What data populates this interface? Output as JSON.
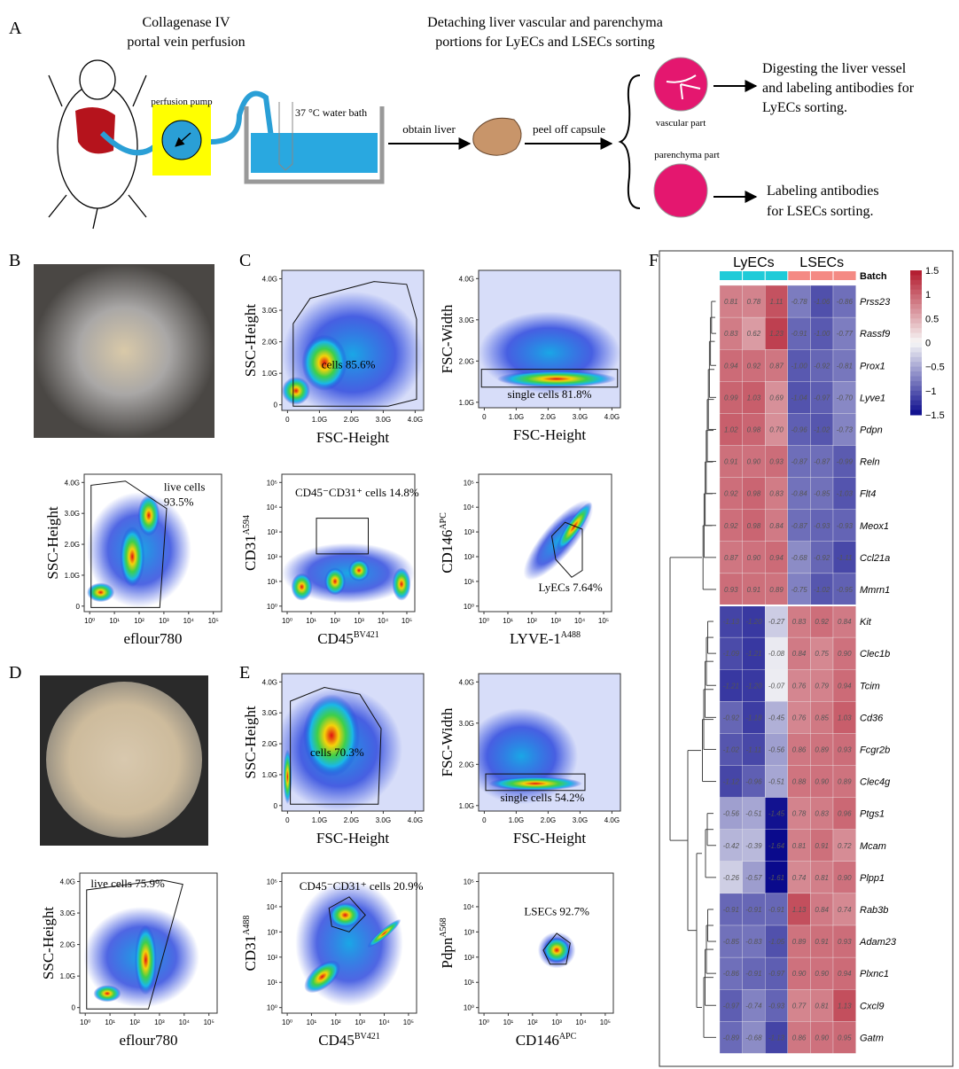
{
  "panel_labels": [
    "A",
    "B",
    "C",
    "D",
    "E",
    "F"
  ],
  "panel_a": {
    "step1_line1": "Collagenase IV",
    "step1_line2": "portal vein perfusion",
    "pump": "perfusion pump",
    "bath": "37 °C water bath",
    "arrow1": "obtain liver",
    "arrow2": "peel off  capsule",
    "detach_line1": "Detaching liver vascular and parenchyma",
    "detach_line2": "portions for LyECs and LSECs sorting",
    "vascular": "vascular  part",
    "parenchyma": "parenchyma part",
    "out1_line1": "Digesting the liver vessel",
    "out1_line2": "and labeling antibodies for",
    "out1_line3": "LyECs sorting.",
    "out2_line1": "Labeling antibodies",
    "out2_line2": "for LSECs sorting."
  },
  "flow_plots": [
    {
      "y_label": "SSC-Height",
      "x_label": "eflour780",
      "x_ticks": [
        "10⁰",
        "10¹",
        "10²",
        "10³",
        "10⁴",
        "10⁵"
      ],
      "y_ticks": [
        "0",
        "1.0G",
        "2.0G",
        "3.0G",
        "4.0G"
      ],
      "gate_label": [
        "live cells",
        "93.5%"
      ]
    },
    {
      "y_label": "SSC-Height",
      "x_label": "FSC-Height",
      "x_ticks": [
        "0",
        "1.0G",
        "2.0G",
        "3.0G",
        "4.0G"
      ],
      "y_ticks": [
        "0",
        "1.0G",
        "2.0G",
        "3.0G",
        "4.0G"
      ],
      "gate_label": [
        "cells 85.6%"
      ]
    },
    {
      "y_label": "FSC-Width",
      "x_label": "FSC-Height",
      "x_ticks": [
        "0",
        "1.0G",
        "2.0G",
        "3.0G",
        "4.0G"
      ],
      "y_ticks": [
        "1.0G",
        "2.0G",
        "3.0G",
        "4.0G"
      ],
      "gate_label": [
        "single cells 81.8%"
      ]
    },
    {
      "y_label": "CD31",
      "y_label_sup": "A594",
      "x_label": "CD45",
      "x_label_sup": "BV421",
      "x_ticks": [
        "10⁰",
        "10¹",
        "10²",
        "10³",
        "10⁴",
        "10⁵"
      ],
      "y_ticks": [
        "10⁰",
        "10¹",
        "10²",
        "10³",
        "10⁴",
        "10⁵"
      ],
      "gate_label": [
        "CD45⁻CD31⁺ cells 14.8%"
      ]
    },
    {
      "y_label": "CD146",
      "y_label_sup": "APC",
      "x_label": "LYVE-1",
      "x_label_sup": "A488",
      "x_ticks": [
        "10⁰",
        "10¹",
        "10²",
        "10³",
        "10⁴",
        "10⁵"
      ],
      "y_ticks": [
        "10⁰",
        "10¹",
        "10²",
        "10³",
        "10⁴",
        "10⁵"
      ],
      "gate_label": [
        "LyECs 7.64%"
      ]
    },
    {
      "y_label": "SSC-Height",
      "x_label": "eflour780",
      "x_ticks": [
        "10⁰",
        "10¹",
        "10²",
        "10³",
        "10⁴",
        "10⁵"
      ],
      "y_ticks": [
        "0",
        "1.0G",
        "2.0G",
        "3.0G",
        "4.0G"
      ],
      "gate_label": [
        "live cells 75.9%"
      ]
    },
    {
      "y_label": "SSC-Height",
      "x_label": "FSC-Height",
      "x_ticks": [
        "0",
        "1.0G",
        "2.0G",
        "3.0G",
        "4.0G"
      ],
      "y_ticks": [
        "0",
        "1.0G",
        "2.0G",
        "3.0G",
        "4.0G"
      ],
      "gate_label": [
        "cells 70.3%"
      ]
    },
    {
      "y_label": "FSC-Width",
      "x_label": "FSC-Height",
      "x_ticks": [
        "0",
        "1.0G",
        "2.0G",
        "3.0G",
        "4.0G"
      ],
      "y_ticks": [
        "1.0G",
        "2.0G",
        "3.0G",
        "4.0G"
      ],
      "gate_label": [
        "single cells 54.2%"
      ]
    },
    {
      "y_label": "CD31",
      "y_label_sup": "A488",
      "x_label": "CD45",
      "x_label_sup": "BV421",
      "x_ticks": [
        "10⁰",
        "10¹",
        "10²",
        "10³",
        "10⁴",
        "10⁵"
      ],
      "y_ticks": [
        "10⁰",
        "10¹",
        "10²",
        "10³",
        "10⁴",
        "10⁵"
      ],
      "gate_label": [
        "CD45⁻CD31⁺ cells 20.9%"
      ]
    },
    {
      "y_label": "Pdpn",
      "y_label_sup": "A568",
      "x_label": "CD146",
      "x_label_sup": "APC",
      "x_ticks": [
        "10⁰",
        "10¹",
        "10²",
        "10³",
        "10⁴",
        "10⁵"
      ],
      "y_ticks": [
        "10⁰",
        "10¹",
        "10²",
        "10³",
        "10⁴",
        "10⁵"
      ],
      "gate_label": [
        "LSECs 92.7%"
      ]
    }
  ],
  "heatmap": {
    "groups": [
      "LyECs",
      "LSECs"
    ],
    "batch_label": "Batch",
    "genes": [
      "Prss23",
      "Rassf9",
      "Prox1",
      "Lyve1",
      "Pdpn",
      "Reln",
      "Flt4",
      "Meox1",
      "Ccl21a",
      "Mmrn1",
      "Kit",
      "Clec1b",
      "Tcim",
      "Cd36",
      "Fcgr2b",
      "Clec4g",
      "Ptgs1",
      "Mcam",
      "Plpp1",
      "Rab3b",
      "Adam23",
      "Plxnc1",
      "Cxcl9",
      "Gatm"
    ],
    "values": [
      [
        "0.81",
        "0.78",
        "1.11",
        "-0.78",
        "-1.06",
        "-0.86"
      ],
      [
        "0.83",
        "0.62",
        "1.23",
        "-0.91",
        "-1.00",
        "-0.77"
      ],
      [
        "0.94",
        "0.92",
        "0.87",
        "-1.00",
        "-0.92",
        "-0.81"
      ],
      [
        "0.99",
        "1.03",
        "0.69",
        "-1.04",
        "-0.97",
        "-0.70"
      ],
      [
        "1.02",
        "0.98",
        "0.70",
        "-0.96",
        "-1.02",
        "-0.73"
      ],
      [
        "0.91",
        "0.90",
        "0.93",
        "-0.87",
        "-0.87",
        "-0.99"
      ],
      [
        "0.92",
        "0.98",
        "0.83",
        "-0.84",
        "-0.85",
        "-1.03"
      ],
      [
        "0.92",
        "0.98",
        "0.84",
        "-0.87",
        "-0.93",
        "-0.93"
      ],
      [
        "0.87",
        "0.90",
        "0.94",
        "-0.68",
        "-0.92",
        "-1.11"
      ],
      [
        "0.93",
        "0.91",
        "0.89",
        "-0.75",
        "-1.02",
        "-0.95"
      ],
      [
        "-1.13",
        "-1.20",
        "-0.27",
        "0.83",
        "0.92",
        "0.84"
      ],
      [
        "-1.09",
        "-1.21",
        "-0.08",
        "0.84",
        "0.75",
        "0.90"
      ],
      [
        "-1.21",
        "-1.20",
        "-0.07",
        "0.76",
        "0.79",
        "0.94"
      ],
      [
        "-0.92",
        "-1.18",
        "-0.45",
        "0.76",
        "0.85",
        "1.03"
      ],
      [
        "-1.02",
        "-1.11",
        "-0.56",
        "0.86",
        "0.89",
        "0.93"
      ],
      [
        "-1.12",
        "-0.96",
        "-0.51",
        "0.88",
        "0.90",
        "0.89"
      ],
      [
        "-0.56",
        "-0.51",
        "-1.45",
        "0.78",
        "0.83",
        "0.96"
      ],
      [
        "-0.42",
        "-0.39",
        "-1.64",
        "0.81",
        "0.91",
        "0.72"
      ],
      [
        "-0.26",
        "-0.57",
        "-1.61",
        "0.74",
        "0.81",
        "0.90"
      ],
      [
        "-0.91",
        "-0.91",
        "-0.91",
        "1.13",
        "0.84",
        "0.74"
      ],
      [
        "-0.85",
        "-0.83",
        "-1.05",
        "0.89",
        "0.91",
        "0.93"
      ],
      [
        "-0.86",
        "-0.91",
        "-0.97",
        "0.90",
        "0.90",
        "0.94"
      ],
      [
        "-0.97",
        "-0.74",
        "-0.93",
        "0.77",
        "0.81",
        "1.13"
      ],
      [
        "-0.89",
        "-0.68",
        "-1.13",
        "0.86",
        "0.90",
        "0.95"
      ]
    ],
    "colorbar_ticks": [
      "1.5",
      "1",
      "0.5",
      "0",
      "−0.5",
      "−1",
      "−1.5"
    ]
  }
}
